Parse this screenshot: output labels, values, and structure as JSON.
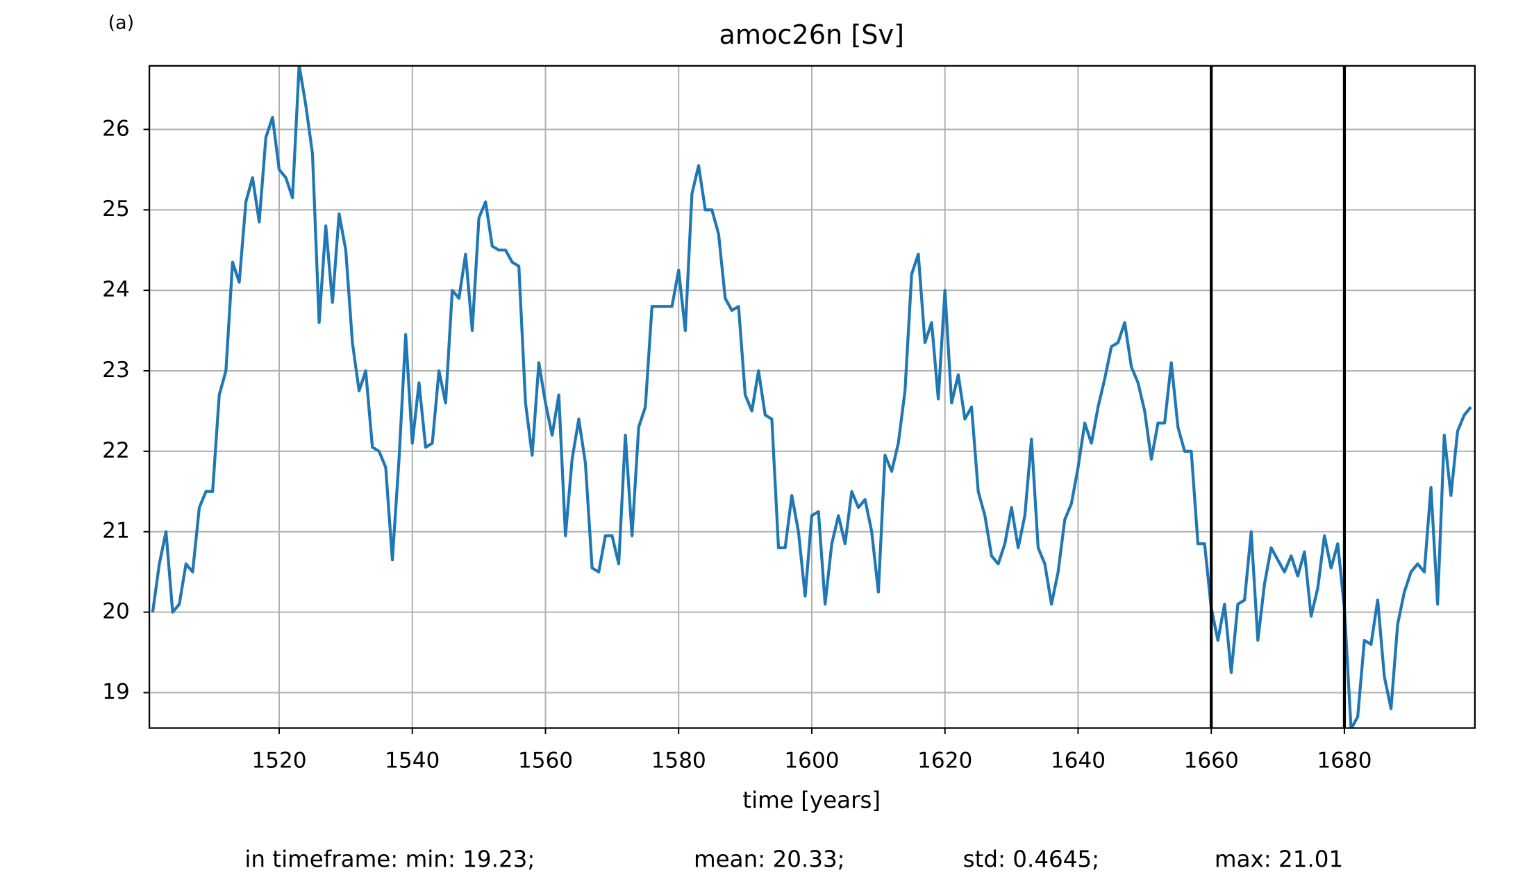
{
  "chart_data": {
    "type": "line",
    "panel_label": "(a)",
    "title": "amoc26n [Sv]",
    "x_label": "time [years]",
    "annotations": [
      "in timeframe: min: 19.23;",
      "mean: 20.33;",
      "std: 0.4645;",
      "max: 21.01"
    ],
    "vlines": [
      1660,
      1680
    ],
    "vline_color": "#000000",
    "grid": true,
    "xlim": [
      1500.5,
      1699.6
    ],
    "ylim": [
      18.56,
      26.79
    ],
    "xticks": [
      1520,
      1540,
      1560,
      1580,
      1600,
      1620,
      1640,
      1660,
      1680
    ],
    "yticks": [
      19,
      20,
      21,
      22,
      23,
      24,
      25,
      26
    ],
    "x": [
      1501,
      1502,
      1503,
      1504,
      1505,
      1506,
      1507,
      1508,
      1509,
      1510,
      1511,
      1512,
      1513,
      1514,
      1515,
      1516,
      1517,
      1518,
      1519,
      1520,
      1521,
      1522,
      1523,
      1524,
      1525,
      1526,
      1527,
      1528,
      1529,
      1530,
      1531,
      1532,
      1533,
      1534,
      1535,
      1536,
      1537,
      1538,
      1539,
      1540,
      1541,
      1542,
      1543,
      1544,
      1545,
      1546,
      1547,
      1548,
      1549,
      1550,
      1551,
      1552,
      1553,
      1554,
      1555,
      1556,
      1557,
      1558,
      1559,
      1560,
      1561,
      1562,
      1563,
      1564,
      1565,
      1566,
      1567,
      1568,
      1569,
      1570,
      1571,
      1572,
      1573,
      1574,
      1575,
      1576,
      1577,
      1578,
      1579,
      1580,
      1581,
      1582,
      1583,
      1584,
      1585,
      1586,
      1587,
      1588,
      1589,
      1590,
      1591,
      1592,
      1593,
      1594,
      1595,
      1596,
      1597,
      1598,
      1599,
      1600,
      1601,
      1602,
      1603,
      1604,
      1605,
      1606,
      1607,
      1608,
      1609,
      1610,
      1611,
      1612,
      1613,
      1614,
      1615,
      1616,
      1617,
      1618,
      1619,
      1620,
      1621,
      1622,
      1623,
      1624,
      1625,
      1626,
      1627,
      1628,
      1629,
      1630,
      1631,
      1632,
      1633,
      1634,
      1635,
      1636,
      1637,
      1638,
      1639,
      1640,
      1641,
      1642,
      1643,
      1644,
      1645,
      1646,
      1647,
      1648,
      1649,
      1650,
      1651,
      1652,
      1653,
      1654,
      1655,
      1656,
      1657,
      1658,
      1659,
      1660,
      1661,
      1662,
      1663,
      1664,
      1665,
      1666,
      1667,
      1668,
      1669,
      1670,
      1671,
      1672,
      1673,
      1674,
      1675,
      1676,
      1677,
      1678,
      1679,
      1680,
      1681,
      1682,
      1683,
      1684,
      1685,
      1686,
      1687,
      1688,
      1689,
      1690,
      1691,
      1692,
      1693,
      1694,
      1695,
      1696,
      1697,
      1698,
      1699
    ],
    "series": [
      {
        "color": "#1f77b4",
        "values": [
          20.0,
          20.6,
          21.0,
          20.0,
          20.1,
          20.6,
          20.5,
          21.3,
          21.5,
          21.5,
          22.7,
          23.0,
          24.35,
          24.1,
          25.1,
          25.4,
          24.85,
          25.9,
          26.15,
          25.5,
          25.4,
          25.15,
          26.8,
          26.3,
          25.7,
          23.6,
          24.8,
          23.85,
          24.95,
          24.5,
          23.35,
          22.75,
          23.0,
          22.05,
          22.0,
          21.8,
          20.65,
          21.9,
          23.45,
          22.1,
          22.85,
          22.05,
          22.1,
          23.0,
          22.6,
          24.0,
          23.9,
          24.45,
          23.5,
          24.9,
          25.1,
          24.55,
          24.5,
          24.5,
          24.35,
          24.3,
          22.6,
          21.95,
          23.1,
          22.6,
          22.2,
          22.7,
          20.95,
          21.9,
          22.4,
          21.85,
          20.55,
          20.5,
          20.95,
          20.95,
          20.6,
          22.2,
          20.95,
          22.3,
          22.55,
          23.8,
          23.8,
          23.8,
          23.8,
          24.25,
          23.5,
          25.2,
          25.55,
          25.0,
          25.0,
          24.7,
          23.9,
          23.75,
          23.8,
          22.7,
          22.5,
          23.0,
          22.45,
          22.4,
          20.8,
          20.8,
          21.45,
          21.0,
          20.2,
          21.2,
          21.25,
          20.1,
          20.85,
          21.2,
          20.85,
          21.5,
          21.3,
          21.4,
          21.0,
          20.25,
          21.95,
          21.75,
          22.1,
          22.75,
          24.2,
          24.45,
          23.35,
          23.6,
          22.65,
          24.0,
          22.6,
          22.95,
          22.4,
          22.55,
          21.5,
          21.2,
          20.7,
          20.6,
          20.85,
          21.3,
          20.8,
          21.2,
          22.15,
          20.8,
          20.6,
          20.1,
          20.5,
          21.15,
          21.35,
          21.8,
          22.35,
          22.1,
          22.55,
          22.9,
          23.3,
          23.35,
          23.6,
          23.05,
          22.85,
          22.5,
          21.9,
          22.35,
          22.35,
          23.1,
          22.3,
          22.0,
          22.0,
          20.85,
          20.85,
          20.05,
          19.65,
          20.1,
          19.25,
          20.1,
          20.15,
          21.0,
          19.65,
          20.35,
          20.8,
          20.65,
          20.5,
          20.7,
          20.45,
          20.75,
          19.95,
          20.3,
          20.95,
          20.55,
          20.85,
          20.05,
          18.55,
          18.7,
          19.65,
          19.6,
          20.15,
          19.2,
          18.8,
          19.85,
          20.25,
          20.5,
          20.6,
          20.5,
          21.55,
          20.1,
          22.2,
          21.45,
          22.25,
          22.45,
          22.55
        ]
      }
    ]
  }
}
